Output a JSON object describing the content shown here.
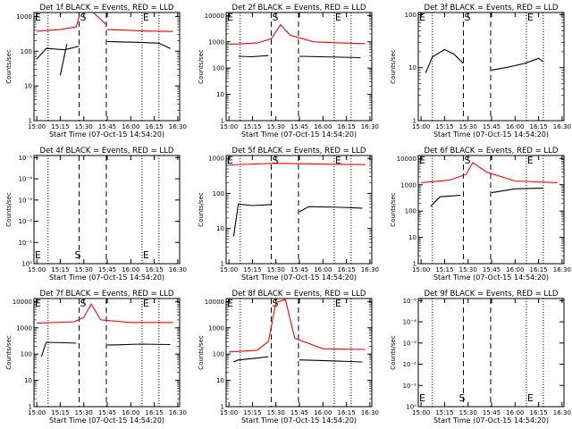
{
  "chart_data": [
    {
      "type": "line",
      "title": "Det 1f BLACK = Events, RED = LLD",
      "ylabel": "Counts/sec",
      "xlabel": "Start Time (07-Oct-15 14:54:20)",
      "x_ticks": [
        "15:00",
        "15:15",
        "15:30",
        "15:45",
        "16:00",
        "16:15",
        "16:30"
      ],
      "y_ticks": [
        "1",
        "10",
        "100",
        "1000"
      ],
      "ylim": [
        1,
        1300
      ],
      "yscale": "log",
      "grid": false,
      "markers": {
        "E_left": "E",
        "S": "S",
        "E_right": "E"
      },
      "series": [
        {
          "color": "#000000",
          "segments": [
            {
              "x": [
                15.0,
                15.1,
                15.3,
                15.45
              ],
              "y": [
                60,
                120,
                110,
                140
              ]
            },
            {
              "x": [
                15.25,
                15.32
              ],
              "y": [
                20,
                160
              ]
            },
            {
              "x": [
                15.75,
                16.1,
                16.3,
                16.42
              ],
              "y": [
                190,
                180,
                170,
                120
              ]
            }
          ]
        },
        {
          "color": "#ff0000",
          "segments": [
            {
              "x": [
                15.0,
                15.25,
                15.42,
                15.45
              ],
              "y": [
                380,
                420,
                500,
                1000
              ]
            },
            {
              "x": [
                15.52,
                15.6,
                15.75
              ],
              "y": [
                1500,
                1300,
                550
              ]
            },
            {
              "x": [
                15.75,
                16.2,
                16.45
              ],
              "y": [
                420,
                380,
                370
              ]
            }
          ]
        }
      ]
    },
    {
      "type": "line",
      "title": "Det 2f BLACK = Events, RED = LLD",
      "ylabel": "Counts/sec",
      "xlabel": "Start Time (07-Oct-15 14:54:20)",
      "x_ticks": [
        "15:00",
        "15:15",
        "15:30",
        "15:45",
        "16:00",
        "16:15",
        "16:30"
      ],
      "y_ticks": [
        "1",
        "10",
        "100",
        "1000",
        "10000"
      ],
      "ylim": [
        1,
        13000
      ],
      "yscale": "log",
      "grid": false,
      "markers": {
        "E_left": "E",
        "S": "S",
        "E_right": "E"
      },
      "series": [
        {
          "color": "#000000",
          "segments": [
            {
              "x": [
                15.1,
                15.25,
                15.42
              ],
              "y": [
                280,
                270,
                300
              ]
            },
            {
              "x": [
                15.75,
                16.2,
                16.4
              ],
              "y": [
                280,
                260,
                250
              ]
            }
          ]
        },
        {
          "color": "#ff0000",
          "segments": [
            {
              "x": [
                15.0,
                15.3,
                15.45,
                15.55,
                15.65,
                15.9,
                16.2,
                16.45
              ],
              "y": [
                800,
                900,
                1300,
                4500,
                1800,
                1000,
                900,
                850
              ]
            }
          ]
        }
      ]
    },
    {
      "type": "line",
      "title": "Det 3f BLACK = Events, RED = LLD",
      "ylabel": "Counts/sec",
      "xlabel": "Start Time (07-Oct-15 14:54:20)",
      "x_ticks": [
        "15:00",
        "15:15",
        "15:30",
        "15:45",
        "16:00",
        "16:15",
        "16:30"
      ],
      "y_ticks": [
        "1",
        "10",
        "100"
      ],
      "ylim": [
        1,
        110
      ],
      "yscale": "log",
      "grid": false,
      "markers": {
        "E_left": "E",
        "S": "S",
        "E_right": "E"
      },
      "series": [
        {
          "color": "#000000",
          "segments": [
            {
              "x": [
                15.05,
                15.12,
                15.25,
                15.35,
                15.45
              ],
              "y": [
                8,
                16,
                22,
                18,
                12
              ]
            },
            {
              "x": [
                15.75,
                15.9,
                16.1,
                16.25,
                16.3
              ],
              "y": [
                9,
                10,
                12,
                15,
                13
              ]
            }
          ]
        },
        {
          "color": "#ff0000",
          "segments": []
        }
      ]
    },
    {
      "type": "line",
      "title": "Det 4f BLACK = Events, RED = LLD",
      "ylabel": "Counts/sec",
      "xlabel": "Start Time (07-Oct-15 14:54:20)",
      "x_ticks": [
        "15:00",
        "15:15",
        "15:30",
        "15:45",
        "16:00",
        "16:15",
        "16:30"
      ],
      "y_ticks": [
        "10⁰",
        "10⁻¹",
        "10⁻²",
        "10⁻³",
        "10⁻⁴",
        "10⁻⁵"
      ],
      "yscale": "log",
      "grid": false,
      "markers": {
        "E_left": "E",
        "S": "S",
        "E_right": "E"
      },
      "series": []
    },
    {
      "type": "line",
      "title": "Det 5f BLACK = Events, RED = LLD",
      "ylabel": "Counts/sec",
      "xlabel": "Start Time (07-Oct-15 14:54:20)",
      "x_ticks": [
        "15:00",
        "15:15",
        "15:30",
        "15:45",
        "16:00",
        "16:15",
        "16:30"
      ],
      "y_ticks": [
        "1",
        "10",
        "100",
        "1000"
      ],
      "ylim": [
        1,
        1200
      ],
      "yscale": "log",
      "grid": false,
      "markers": {
        "E_left": "E",
        "S": "S",
        "E_right": "E"
      },
      "series": [
        {
          "color": "#000000",
          "segments": [
            {
              "x": [
                15.05,
                15.1,
                15.25,
                15.45
              ],
              "y": [
                6,
                50,
                45,
                48
              ]
            },
            {
              "x": [
                15.75,
                15.85,
                16.2,
                16.42
              ],
              "y": [
                30,
                42,
                40,
                38
              ]
            }
          ]
        },
        {
          "color": "#ff0000",
          "segments": [
            {
              "x": [
                15.0,
                15.5,
                16.0,
                16.45
              ],
              "y": [
                650,
                720,
                680,
                660
              ]
            }
          ]
        }
      ]
    },
    {
      "type": "line",
      "title": "Det 6f BLACK = Events, RED = LLD",
      "ylabel": "Counts/sec",
      "xlabel": "Start Time (07-Oct-15 14:54:20)",
      "x_ticks": [
        "15:00",
        "15:15",
        "15:30",
        "15:45",
        "16:00",
        "16:15",
        "16:30"
      ],
      "y_ticks": [
        "1",
        "10",
        "100",
        "1000",
        "10000"
      ],
      "ylim": [
        1,
        13000
      ],
      "yscale": "log",
      "grid": false,
      "markers": {
        "E_left": "E",
        "S": "S",
        "E_right": "E"
      },
      "series": [
        {
          "color": "#000000",
          "segments": [
            {
              "x": [
                15.1,
                15.2,
                15.42
              ],
              "y": [
                150,
                350,
                400
              ]
            },
            {
              "x": [
                15.75,
                16.0,
                16.3
              ],
              "y": [
                500,
                700,
                750
              ]
            }
          ]
        },
        {
          "color": "#ff0000",
          "segments": [
            {
              "x": [
                15.0,
                15.3,
                15.48,
                15.55,
                15.7,
                16.0,
                16.45
              ],
              "y": [
                1200,
                1500,
                2500,
                7000,
                3000,
                1400,
                1200
              ]
            }
          ]
        }
      ]
    },
    {
      "type": "line",
      "title": "Det 7f BLACK = Events, RED = LLD",
      "ylabel": "Counts/sec",
      "xlabel": "Start Time (07-Oct-15 14:54:20)",
      "x_ticks": [
        "15:00",
        "15:15",
        "15:30",
        "15:45",
        "16:00",
        "16:15",
        "16:30"
      ],
      "y_ticks": [
        "1",
        "10",
        "100",
        "1000",
        "10000"
      ],
      "ylim": [
        1,
        13000
      ],
      "yscale": "log",
      "grid": false,
      "markers": {
        "E_left": "E",
        "S": "S",
        "E_right": "E"
      },
      "series": [
        {
          "color": "#000000",
          "segments": [
            {
              "x": [
                15.05,
                15.1,
                15.3,
                15.42
              ],
              "y": [
                80,
                280,
                270,
                260
              ]
            },
            {
              "x": [
                15.75,
                16.1,
                16.42
              ],
              "y": [
                220,
                240,
                230
              ]
            }
          ]
        },
        {
          "color": "#ff0000",
          "segments": [
            {
              "x": [
                15.0,
                15.4,
                15.5,
                15.58,
                15.68,
                16.0,
                16.45
              ],
              "y": [
                1500,
                1700,
                2500,
                8000,
                2000,
                1600,
                1600
              ]
            }
          ]
        }
      ]
    },
    {
      "type": "line",
      "title": "Det 8f BLACK = Events, RED = LLD",
      "ylabel": "Counts/sec",
      "xlabel": "Start Time (07-Oct-15 14:54:20)",
      "x_ticks": [
        "15:00",
        "15:15",
        "15:30",
        "15:45",
        "16:00",
        "16:15",
        "16:30"
      ],
      "y_ticks": [
        "1",
        "10",
        "100",
        "1000",
        "10000"
      ],
      "ylim": [
        1,
        13000
      ],
      "yscale": "log",
      "grid": false,
      "markers": {
        "E_left": "E",
        "S": "S",
        "E_right": "E"
      },
      "series": [
        {
          "color": "#000000",
          "segments": [
            {
              "x": [
                15.05,
                15.1,
                15.3,
                15.42
              ],
              "y": [
                50,
                60,
                70,
                80
              ]
            },
            {
              "x": [
                15.75,
                16.1,
                16.42
              ],
              "y": [
                60,
                55,
                50
              ]
            }
          ]
        },
        {
          "color": "#ff0000",
          "segments": [
            {
              "x": [
                15.0,
                15.3,
                15.42,
                15.5,
                15.6,
                15.7,
                16.0,
                16.45
              ],
              "y": [
                120,
                140,
                300,
                9000,
                12000,
                400,
                160,
                150
              ]
            }
          ]
        }
      ]
    },
    {
      "type": "line",
      "title": "Det 9f BLACK = Events, RED = LLD",
      "ylabel": "Counts/sec",
      "xlabel": "Start Time (07-Oct-15 14:54:20)",
      "x_ticks": [
        "15:00",
        "15:15",
        "15:30",
        "15:45",
        "16:00",
        "16:15",
        "16:30"
      ],
      "y_ticks": [
        "10⁰",
        "10⁻¹",
        "10⁻²",
        "10⁻³",
        "10⁻⁴",
        "10⁻⁵"
      ],
      "yscale": "log",
      "grid": false,
      "markers": {
        "E_left": "E",
        "S": "S",
        "E_right": "E"
      },
      "series": []
    }
  ],
  "time_markers": {
    "dotted_e_left": 15.12,
    "dashed_s_start": 15.45,
    "dashed_s_end": 15.74,
    "dotted_e_right": 16.12,
    "dotted_right2": 16.3
  }
}
